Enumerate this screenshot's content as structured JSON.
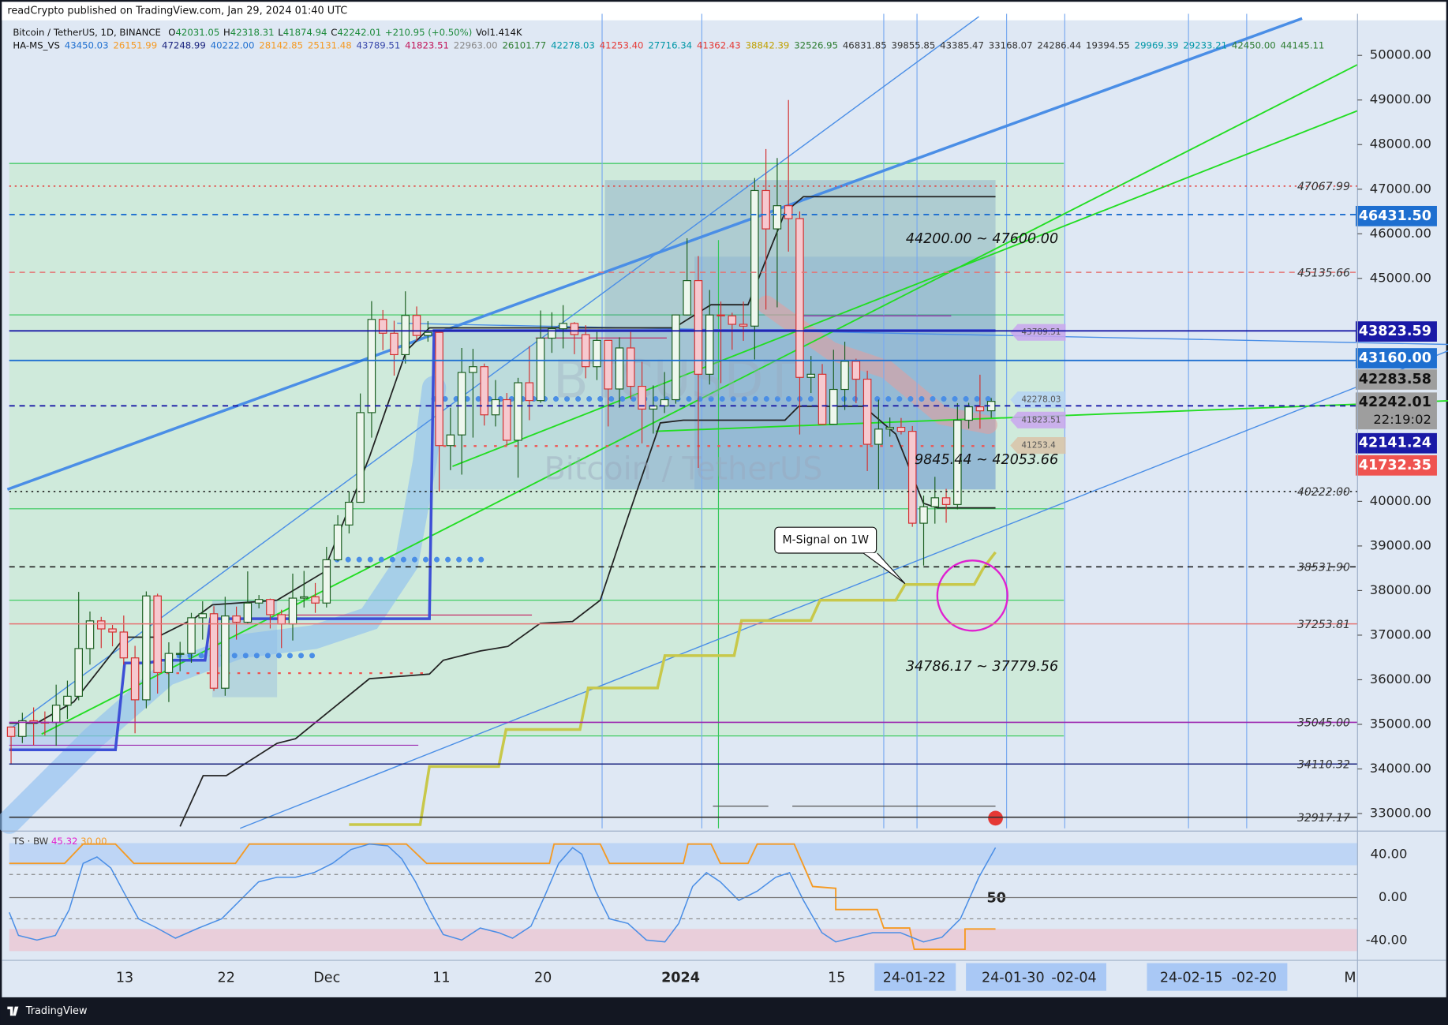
{
  "header": {
    "published": "readCrypto published on TradingView.com, Jan 29, 2024 01:40 UTC",
    "symbol": "Bitcoin / TetherUS, 1D, BINANCE",
    "ohlc": [
      {
        "key": "O",
        "value": "42031.05"
      },
      {
        "key": "H",
        "value": "42318.31"
      },
      {
        "key": "L",
        "value": "41874.94"
      },
      {
        "key": "C",
        "value": "42242.01"
      }
    ],
    "change": "+210.95 (+0.50%)",
    "volume": "Vol1.414K",
    "indicator": "HA-MS_VS",
    "indicator_values": [
      {
        "text": "43450.03",
        "color": "#1e6fd0"
      },
      {
        "text": "26151.99",
        "color": "#f59a23"
      },
      {
        "text": "47248.99",
        "color": "#1a237e"
      },
      {
        "text": "40222.00",
        "color": "#1e6fd0"
      },
      {
        "text": "28142.85",
        "color": "#f59a23"
      },
      {
        "text": "25131.48",
        "color": "#f59a23"
      },
      {
        "text": "43789.51",
        "color": "#3949ab"
      },
      {
        "text": "41823.51",
        "color": "#c2185b"
      },
      {
        "text": "22963.00",
        "color": "#888888"
      },
      {
        "text": "26101.77",
        "color": "#2e7d32"
      },
      {
        "text": "42278.03",
        "color": "#0097a7"
      },
      {
        "text": "41253.40",
        "color": "#e53935"
      },
      {
        "text": "27716.34",
        "color": "#0097a7"
      },
      {
        "text": "41362.43",
        "color": "#e53935"
      },
      {
        "text": "38842.39",
        "color": "#c0a000"
      },
      {
        "text": "32526.95",
        "color": "#2e7d32"
      },
      {
        "text": "46831.85",
        "color": "#333333"
      },
      {
        "text": "39855.85",
        "color": "#333333"
      },
      {
        "text": "43385.47",
        "color": "#333333"
      },
      {
        "text": "33168.07",
        "color": "#333333"
      },
      {
        "text": "24286.44",
        "color": "#333333"
      },
      {
        "text": "19394.55",
        "color": "#333333"
      },
      {
        "text": "29969.39",
        "color": "#0097a7"
      },
      {
        "text": "29233.21",
        "color": "#0097a7"
      },
      {
        "text": "42450.00",
        "color": "#2e7d32"
      },
      {
        "text": "44145.11",
        "color": "#2e7d32"
      }
    ]
  },
  "watermark": {
    "ticker": "BTCUSDT",
    "name": "Bitcoin / TetherUS"
  },
  "price_axis": {
    "ylim": [
      32650,
      50700
    ],
    "ticks": [
      {
        "value": 50000,
        "label": "50000.00"
      },
      {
        "value": 49000,
        "label": "49000.00"
      },
      {
        "value": 48000,
        "label": "48000.00"
      },
      {
        "value": 47000,
        "label": "47000.00"
      },
      {
        "value": 46000,
        "label": "46000.00"
      },
      {
        "value": 45000,
        "label": "45000.00"
      },
      {
        "value": 40000,
        "label": "40000.00"
      },
      {
        "value": 39000,
        "label": "39000.00"
      },
      {
        "value": 38000,
        "label": "38000.00"
      },
      {
        "value": 37000,
        "label": "37000.00"
      },
      {
        "value": 36000,
        "label": "36000.00"
      },
      {
        "value": 35000,
        "label": "35000.00"
      },
      {
        "value": 34000,
        "label": "34000.00"
      },
      {
        "value": 33000,
        "label": "33000.00"
      }
    ]
  },
  "up_color": "#eef7ee",
  "up_stroke": "#1b5e20",
  "down_color": "#f6c9cf",
  "down_stroke": "#d32f2f",
  "candles": [
    [
      34940,
      34950,
      34100,
      34730
    ],
    [
      34730,
      35260,
      34580,
      35080
    ],
    [
      35080,
      35380,
      34530,
      35050
    ],
    [
      35050,
      35290,
      34750,
      35040
    ],
    [
      35040,
      35890,
      34520,
      35430
    ],
    [
      35430,
      35980,
      35120,
      35630
    ],
    [
      35630,
      37970,
      35540,
      36700
    ],
    [
      36700,
      37530,
      36340,
      37320
    ],
    [
      37320,
      37410,
      36710,
      37140
    ],
    [
      37140,
      37230,
      36750,
      37070
    ],
    [
      37070,
      37440,
      36340,
      36490
    ],
    [
      36490,
      36760,
      34800,
      35550
    ],
    [
      35550,
      37980,
      35360,
      37880
    ],
    [
      37880,
      37930,
      35690,
      36160
    ],
    [
      36160,
      36840,
      35500,
      36590
    ],
    [
      36590,
      36850,
      36190,
      36590
    ],
    [
      36590,
      37500,
      36380,
      37390
    ],
    [
      37390,
      37760,
      36900,
      37480
    ],
    [
      37480,
      37650,
      35750,
      35810
    ],
    [
      35810,
      37860,
      35640,
      37430
    ],
    [
      37430,
      37640,
      36900,
      37290
    ],
    [
      37290,
      38430,
      37260,
      37720
    ],
    [
      37720,
      37900,
      37600,
      37800
    ],
    [
      37800,
      37820,
      37150,
      37460
    ],
    [
      37460,
      37570,
      36710,
      37250
    ],
    [
      37250,
      38380,
      36880,
      37830
    ],
    [
      37830,
      38440,
      37620,
      37860
    ],
    [
      37860,
      38170,
      37500,
      37720
    ],
    [
      37720,
      38980,
      37620,
      38690
    ],
    [
      38690,
      39690,
      38660,
      39470
    ],
    [
      39470,
      40220,
      39280,
      39980
    ],
    [
      39980,
      42420,
      39980,
      41990
    ],
    [
      41990,
      44490,
      41430,
      44080
    ],
    [
      44080,
      44290,
      43390,
      43770
    ],
    [
      43770,
      44050,
      42820,
      43290
    ],
    [
      43290,
      44710,
      43090,
      44170
    ],
    [
      44170,
      44370,
      43600,
      43720
    ],
    [
      43720,
      44040,
      43580,
      43790
    ],
    [
      43790,
      43800,
      40220,
      41250
    ],
    [
      41250,
      42100,
      40700,
      41490
    ],
    [
      41490,
      43440,
      40600,
      42890
    ],
    [
      42890,
      43420,
      41430,
      43020
    ],
    [
      43020,
      43090,
      41700,
      41940
    ],
    [
      41940,
      42720,
      41680,
      42280
    ],
    [
      42280,
      42430,
      41260,
      41370
    ],
    [
      41370,
      42770,
      40530,
      42660
    ],
    [
      42660,
      43480,
      41820,
      42260
    ],
    [
      42260,
      44280,
      42210,
      43660
    ],
    [
      43660,
      44240,
      43330,
      43870
    ],
    [
      43870,
      44400,
      43430,
      43990
    ],
    [
      43990,
      44020,
      43300,
      43740
    ],
    [
      43740,
      43950,
      42760,
      43020
    ],
    [
      43020,
      43800,
      42720,
      43610
    ],
    [
      43610,
      43610,
      41680,
      42520
    ],
    [
      42520,
      43680,
      42100,
      43440
    ],
    [
      43440,
      43800,
      42290,
      42580
    ],
    [
      42580,
      43130,
      41300,
      42070
    ],
    [
      42070,
      42600,
      41520,
      42140
    ],
    [
      42140,
      42900,
      41980,
      42280
    ],
    [
      42280,
      44190,
      42190,
      44180
    ],
    [
      44180,
      45900,
      44170,
      44950
    ],
    [
      44950,
      45500,
      40750,
      42850
    ],
    [
      42850,
      44740,
      42620,
      44180
    ],
    [
      44180,
      44480,
      42650,
      44160
    ],
    [
      44160,
      44230,
      43400,
      43970
    ],
    [
      43970,
      44480,
      43600,
      43930
    ],
    [
      43930,
      47250,
      43180,
      46970
    ],
    [
      46970,
      47900,
      44300,
      46110
    ],
    [
      46110,
      47700,
      44350,
      46630
    ],
    [
      46630,
      49000,
      45600,
      46340
    ],
    [
      46340,
      46500,
      41500,
      42780
    ],
    [
      42780,
      43260,
      42430,
      42850
    ],
    [
      42850,
      43080,
      41720,
      41730
    ],
    [
      41730,
      43400,
      41720,
      42510
    ],
    [
      42510,
      43580,
      42050,
      43140
    ],
    [
      43140,
      43200,
      42200,
      42740
    ],
    [
      42740,
      42930,
      40680,
      41280
    ],
    [
      41280,
      42280,
      40270,
      41620
    ],
    [
      41620,
      41880,
      41450,
      41660
    ],
    [
      41660,
      41870,
      41500,
      41570
    ],
    [
      41570,
      41690,
      39430,
      39510
    ],
    [
      39510,
      40130,
      38560,
      39880
    ],
    [
      39880,
      40550,
      39500,
      40080
    ],
    [
      40080,
      40280,
      39520,
      39930
    ],
    [
      39930,
      42200,
      39820,
      41820
    ],
    [
      41820,
      42210,
      41630,
      42120
    ],
    [
      42120,
      42840,
      41630,
      42030
    ],
    [
      42031.05,
      42318.31,
      41874.94,
      42242.01
    ]
  ],
  "levels": [
    {
      "value": 47067.99,
      "label": "47067.99",
      "color": "#e53935",
      "dash": "dotted"
    },
    {
      "value": 45135.66,
      "label": "45135.66",
      "color": "#e57373",
      "dash": "dashed"
    },
    {
      "value": 40222.0,
      "label": "40222.00",
      "color": "#111111",
      "dash": "dotted"
    },
    {
      "value": 38531.9,
      "label": "38531.90",
      "color": "#111111",
      "dash": "dashed"
    },
    {
      "value": 37253.81,
      "label": "37253.81",
      "color": "#e57373",
      "dash": "solid"
    },
    {
      "value": 35045.0,
      "label": "35045.00",
      "color": "#9c27b0",
      "dash": "solid"
    },
    {
      "value": 34110.32,
      "label": "34110.32",
      "color": "#1a237e",
      "dash": "solid"
    },
    {
      "value": 32917.17,
      "label": "32917.17",
      "color": "#333333",
      "dash": "solid"
    }
  ],
  "badges": [
    {
      "value": 46431.5,
      "label": "46431.50",
      "color": "#1e6fd0",
      "line": "dashed"
    },
    {
      "value": 43823.59,
      "label": "43823.59",
      "color": "#1a1aa6",
      "line": "solid"
    },
    {
      "value": 43160.0,
      "label": "43160.00",
      "color": "#1e6fd0",
      "line": "solid"
    },
    {
      "value": 42283.58,
      "label": "42283.58",
      "color": "#9e9e9e",
      "line": "none"
    },
    {
      "value": 42242.01,
      "label": "42242.01",
      "color": "#9e9e9e",
      "line": "none",
      "countdown": "22:19:02"
    },
    {
      "value": 42141.24,
      "label": "42141.24",
      "color": "#1a1aa6",
      "line": "dashed"
    },
    {
      "value": 41732.35,
      "label": "41732.35",
      "color": "#ef5350",
      "line": "none"
    }
  ],
  "pills": [
    {
      "value": 43789.51,
      "label": "43789.51",
      "color": "#c9a6ef"
    },
    {
      "value": 42278.03,
      "label": "42278.03",
      "color": "#b5d3f3"
    },
    {
      "value": 41823.51,
      "label": "41823.51",
      "color": "#c9a6ef"
    },
    {
      "value": 41253.4,
      "label": "41253.4",
      "color": "#d9c3a8"
    }
  ],
  "annotations": {
    "upper_range": "44200.00 ~ 47600.00",
    "middle_range": "9845.44 ~ 42053.66",
    "lower_range": "34786.17 ~ 37779.56",
    "callout": "M-Signal on 1W"
  },
  "oscillator": {
    "name": "TS · BW",
    "value1": "45.32",
    "value2": "30.00",
    "level_label": "50",
    "ylim": [
      -55,
      55
    ],
    "ticks": [
      {
        "value": 40,
        "label": "40.00"
      },
      {
        "value": 0,
        "label": "0.00"
      },
      {
        "value": -40,
        "label": "-40.00"
      }
    ]
  },
  "time_axis": [
    "13",
    "22",
    "Dec",
    "11",
    "20",
    "2024",
    "15",
    "24-01-22",
    "24-01-30",
    "-02-04",
    "24-02-15",
    "-02-20",
    "M"
  ],
  "footer": "TradingView"
}
